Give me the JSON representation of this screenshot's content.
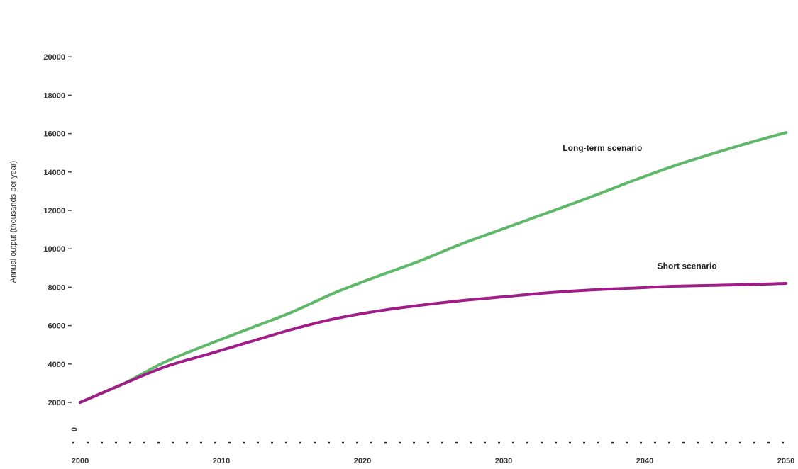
{
  "chart_data": {
    "type": "line",
    "title": "",
    "xlabel": "",
    "ylabel": "Annual output (thousands per year)",
    "x_ticks": [
      "2000",
      "2010",
      "2020",
      "2030",
      "2040",
      "2050"
    ],
    "y_ticks": [
      "2000",
      "4000",
      "6000",
      "8000",
      "10000",
      "12000",
      "14000",
      "16000",
      "18000",
      "20000"
    ],
    "zero_label": "0",
    "xlim": [
      2000,
      2050
    ],
    "ylim": [
      0,
      21000
    ],
    "grid": false,
    "baseline_style": "dotted",
    "series": [
      {
        "name": "Long-term scenario",
        "color": "#5fb86a",
        "x": [
          2000,
          2003,
          2006,
          2009,
          2012,
          2015,
          2018,
          2021,
          2024,
          2027,
          2030,
          2033,
          2036,
          2039,
          2042,
          2045,
          2048,
          2050
        ],
        "values": [
          2000,
          2950,
          4100,
          5000,
          5850,
          6700,
          7700,
          8550,
          9350,
          10250,
          11050,
          11850,
          12650,
          13500,
          14300,
          15000,
          15650,
          16050
        ]
      },
      {
        "name": "Short scenario",
        "color": "#a01c86",
        "x": [
          2000,
          2003,
          2006,
          2009,
          2012,
          2015,
          2018,
          2021,
          2024,
          2027,
          2030,
          2033,
          2036,
          2039,
          2042,
          2045,
          2048,
          2050
        ],
        "values": [
          2000,
          2950,
          3850,
          4500,
          5150,
          5800,
          6350,
          6750,
          7050,
          7300,
          7500,
          7700,
          7850,
          7950,
          8050,
          8100,
          8150,
          8200
        ]
      }
    ],
    "annotations": [
      {
        "text": "Long-term scenario",
        "x": 2037,
        "y": 15100
      },
      {
        "text": "Short scenario",
        "x": 2043,
        "y": 8950
      }
    ]
  }
}
